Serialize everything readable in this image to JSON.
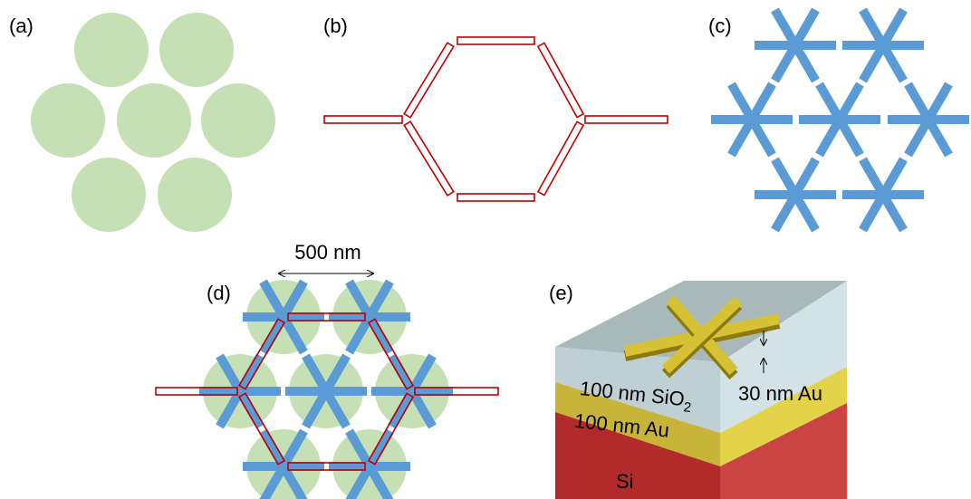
{
  "panels": {
    "a": "(a)",
    "b": "(b)",
    "c": "(c)",
    "d": "(d)",
    "e": "(e)"
  },
  "scale_label": "500 nm",
  "layers": {
    "sio2": {
      "text": "100 nm SiO",
      "sub": "2"
    },
    "au": "100 nm Au",
    "si": "Si",
    "cross": "30 nm Au"
  }
}
